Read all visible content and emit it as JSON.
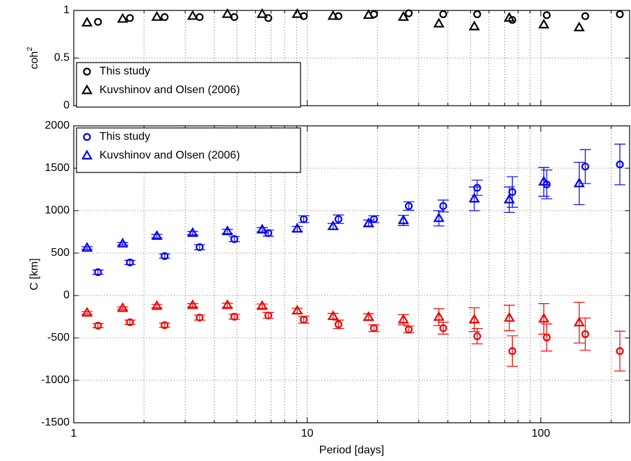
{
  "chart_data": [
    {
      "type": "scatter",
      "ylabel": "coh",
      "ylabel_superscript": "2",
      "xscale": "log",
      "xlim": [
        1,
        240
      ],
      "xticks": [
        1,
        10,
        100
      ],
      "xminorticks": [
        2,
        3,
        4,
        5,
        6,
        7,
        8,
        9,
        20,
        30,
        40,
        50,
        60,
        70,
        80,
        90,
        200
      ],
      "ylim": [
        0,
        1
      ],
      "yticks": [
        0,
        0.5,
        1
      ],
      "grid": true,
      "legend": "lower left",
      "series": [
        {
          "name": "This study",
          "color": "#000000",
          "marker": "circle",
          "x": [
            1.27,
            1.74,
            2.45,
            3.46,
            4.87,
            6.81,
            9.66,
            13.6,
            19.3,
            27.2,
            38.2,
            53.4,
            75.5,
            106,
            155,
            218
          ],
          "values": [
            0.88,
            0.92,
            0.93,
            0.93,
            0.93,
            0.92,
            0.94,
            0.94,
            0.96,
            0.97,
            0.96,
            0.96,
            0.9,
            0.95,
            0.94,
            0.96
          ]
        },
        {
          "name": "Kuvshinov and Olsen (2006)",
          "color": "#000000",
          "marker": "triangle",
          "x": [
            1.14,
            1.62,
            2.27,
            3.23,
            4.55,
            6.41,
            9.06,
            12.9,
            18.3,
            25.8,
            36.6,
            51.9,
            73.3,
            103,
            146
          ],
          "values": [
            0.87,
            0.91,
            0.93,
            0.94,
            0.96,
            0.96,
            0.96,
            0.94,
            0.95,
            0.93,
            0.86,
            0.83,
            0.92,
            0.85,
            0.82
          ]
        }
      ]
    },
    {
      "type": "scatter",
      "ylabel": "C [km]",
      "xlabel": "Period [days]",
      "xscale": "log",
      "xlim": [
        1,
        240
      ],
      "xticks": [
        1,
        10,
        100
      ],
      "xminorticks": [
        2,
        3,
        4,
        5,
        6,
        7,
        8,
        9,
        20,
        30,
        40,
        50,
        60,
        70,
        80,
        90,
        200
      ],
      "ylim": [
        -1500,
        2000
      ],
      "yticks": [
        -1500,
        -1000,
        -500,
        0,
        500,
        1000,
        1500,
        2000
      ],
      "grid": true,
      "legend": "upper left",
      "series": [
        {
          "name": "This study",
          "color": "#0000ee",
          "marker": "circle",
          "x": [
            1.27,
            1.74,
            2.45,
            3.46,
            4.87,
            6.81,
            9.66,
            13.6,
            19.3,
            27.2,
            38.2,
            53.4,
            75.5,
            106,
            155,
            218
          ],
          "values": [
            275,
            390,
            465,
            570,
            665,
            735,
            900,
            900,
            900,
            1055,
            1055,
            1270,
            1220,
            1310,
            1520,
            1545
          ],
          "errors": [
            25,
            25,
            25,
            30,
            30,
            35,
            40,
            50,
            40,
            50,
            70,
            90,
            180,
            170,
            200,
            240
          ]
        },
        {
          "name": "Kuvshinov and Olsen (2006)",
          "color": "#0000ee",
          "marker": "triangle",
          "x": [
            1.14,
            1.62,
            2.27,
            3.23,
            4.55,
            6.41,
            9.06,
            12.9,
            18.3,
            25.8,
            36.6,
            51.9,
            73.3,
            103,
            146
          ],
          "values": [
            560,
            610,
            700,
            735,
            755,
            775,
            785,
            815,
            850,
            885,
            910,
            1140,
            1130,
            1340,
            1320
          ],
          "errors": [
            15,
            15,
            20,
            20,
            25,
            25,
            30,
            35,
            40,
            60,
            90,
            140,
            150,
            170,
            250
          ]
        },
        {
          "name": "This study",
          "color": "#ee0000",
          "marker": "circle",
          "x": [
            1.27,
            1.74,
            2.45,
            3.46,
            4.87,
            6.81,
            9.66,
            13.6,
            19.3,
            27.2,
            38.2,
            53.4,
            75.5,
            106,
            155,
            218
          ],
          "values": [
            -355,
            -315,
            -350,
            -260,
            -250,
            -235,
            -285,
            -340,
            -385,
            -400,
            -385,
            -480,
            -655,
            -495,
            -455,
            -655
          ],
          "errors": [
            25,
            25,
            25,
            30,
            30,
            35,
            40,
            50,
            40,
            40,
            70,
            90,
            180,
            160,
            190,
            235
          ]
        },
        {
          "name": "Kuvshinov and Olsen (2006)",
          "color": "#ee0000",
          "marker": "triangle",
          "x": [
            1.14,
            1.62,
            2.27,
            3.23,
            4.55,
            6.41,
            9.06,
            12.9,
            18.3,
            25.8,
            36.6,
            51.9,
            73.3,
            103,
            146
          ],
          "values": [
            -205,
            -150,
            -125,
            -115,
            -115,
            -125,
            -180,
            -245,
            -255,
            -285,
            -255,
            -285,
            -265,
            -275,
            -320
          ],
          "errors": [
            15,
            15,
            20,
            20,
            25,
            25,
            30,
            35,
            40,
            60,
            100,
            140,
            150,
            180,
            240
          ]
        }
      ]
    }
  ]
}
